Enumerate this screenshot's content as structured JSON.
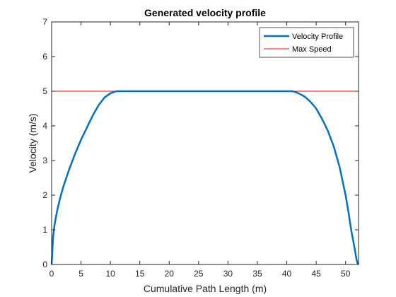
{
  "chart_data": {
    "type": "line",
    "title": "Generated velocity profile",
    "xlabel": "Cumulative Path Length (m)",
    "ylabel": "Velocity (m/s)",
    "xlim": [
      0,
      52.2
    ],
    "ylim": [
      0,
      7
    ],
    "xticks": [
      0,
      5,
      10,
      15,
      20,
      25,
      30,
      35,
      40,
      45,
      50
    ],
    "yticks": [
      0,
      1,
      2,
      3,
      4,
      5,
      6,
      7
    ],
    "grid": false,
    "legend_position": "top-right",
    "series": [
      {
        "name": "Velocity Profile",
        "color": "#0072bd",
        "x": [
          0,
          0.25,
          0.5,
          1,
          1.5,
          2,
          3,
          4,
          5,
          6,
          7,
          8,
          9,
          10,
          10.5,
          11,
          12,
          20,
          30,
          40,
          41,
          41.5,
          42,
          43,
          44,
          45,
          46,
          47,
          48,
          49,
          50,
          50.5,
          51,
          51.5,
          51.8,
          52,
          52.2
        ],
        "y": [
          0,
          0.8,
          1.15,
          1.6,
          1.95,
          2.25,
          2.75,
          3.2,
          3.6,
          3.95,
          4.3,
          4.6,
          4.82,
          4.94,
          4.97,
          5.0,
          5.0,
          5.0,
          5.0,
          5.0,
          5.0,
          4.97,
          4.94,
          4.85,
          4.7,
          4.5,
          4.2,
          3.85,
          3.4,
          2.8,
          2.0,
          1.5,
          0.95,
          0.5,
          0.2,
          0.05,
          0
        ]
      },
      {
        "name": "Max Speed",
        "color": "#ff0000",
        "x": [
          0,
          52.2
        ],
        "y": [
          5,
          5
        ]
      }
    ]
  }
}
